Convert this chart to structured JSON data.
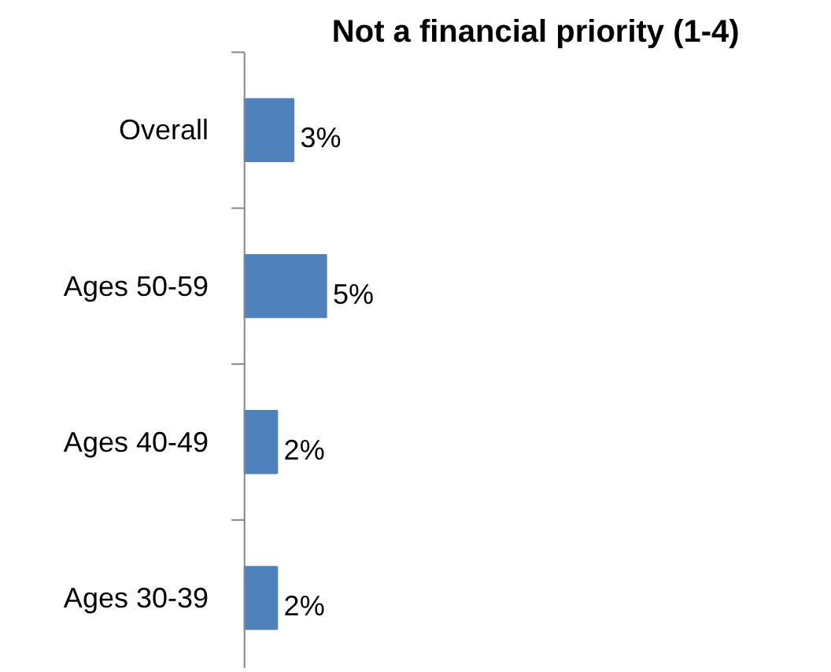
{
  "chart_data": {
    "type": "bar",
    "orientation": "horizontal",
    "title": "Not a financial priority (1-4)",
    "categories": [
      "Overall",
      "Ages 50-59",
      "Ages 40-49",
      "Ages 30-39"
    ],
    "values": [
      3,
      5,
      2,
      2
    ],
    "value_labels": [
      "3%",
      "5%",
      "2%",
      "2%"
    ],
    "color": "#4f81bd"
  }
}
